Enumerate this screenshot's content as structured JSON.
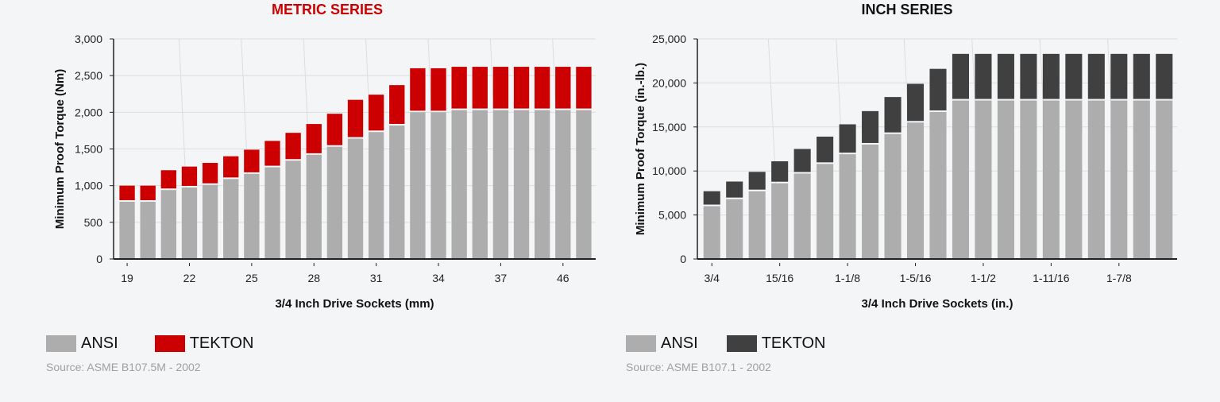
{
  "chart_data": [
    {
      "type": "bar",
      "stacked": true,
      "title": "METRIC SERIES",
      "title_color": "#cc0000",
      "xlabel": "3/4 Inch Drive Sockets (mm)",
      "ylabel": "Minimum Proof Torque (Nm)",
      "ylim": [
        0,
        3000
      ],
      "yticks": [
        "0",
        "500",
        "1,000",
        "1,500",
        "2,000",
        "2,500",
        "3,000"
      ],
      "ytick_values": [
        0,
        500,
        1000,
        1500,
        2000,
        2500,
        3000
      ],
      "grid": true,
      "categories": [
        "19",
        "",
        "",
        "22",
        "",
        "",
        "25",
        "",
        "",
        "28",
        "",
        "",
        "31",
        "",
        "",
        "34",
        "",
        "",
        "37",
        "",
        "",
        "46",
        ""
      ],
      "series": [
        {
          "name": "ANSI",
          "color": "#adadad",
          "values": [
            780,
            780,
            940,
            975,
            1010,
            1090,
            1160,
            1250,
            1340,
            1420,
            1530,
            1640,
            1730,
            1820,
            2000,
            2000,
            2030,
            2030,
            2030,
            2030,
            2030,
            2030,
            2030
          ]
        },
        {
          "name": "TEKTON",
          "color": "#cc0000",
          "totals": [
            1000,
            1000,
            1210,
            1260,
            1310,
            1400,
            1490,
            1610,
            1720,
            1840,
            1980,
            2170,
            2240,
            2370,
            2600,
            2600,
            2620,
            2620,
            2620,
            2620,
            2620,
            2620,
            2620
          ]
        }
      ],
      "legend": "bottom-left",
      "source": "Source: ASME B107.5M - 2002"
    },
    {
      "type": "bar",
      "stacked": true,
      "title": "INCH SERIES",
      "title_color": "#111111",
      "xlabel": "3/4 Inch Drive Sockets (in.)",
      "ylabel": "Minimum Proof Torque (in.-lb.)",
      "ylim": [
        0,
        25000
      ],
      "yticks": [
        "0",
        "5,000",
        "10,000",
        "15,000",
        "20,000",
        "25,000"
      ],
      "ytick_values": [
        0,
        5000,
        10000,
        15000,
        20000,
        25000
      ],
      "grid": true,
      "categories": [
        "3/4",
        "",
        "",
        "15/16",
        "",
        "",
        "1-1/8",
        "",
        "",
        "1-5/16",
        "",
        "",
        "1-1/2",
        "",
        "",
        "1-11/16",
        "",
        "",
        "1-7/8",
        "",
        ""
      ],
      "series": [
        {
          "name": "ANSI",
          "color": "#adadad",
          "values": [
            6000,
            6800,
            7700,
            8600,
            9700,
            10800,
            11900,
            13000,
            14200,
            15500,
            16700,
            18000,
            18000,
            18000,
            18000,
            18000,
            18000,
            18000,
            18000,
            18000,
            18000
          ]
        },
        {
          "name": "TEKTON",
          "color": "#404040",
          "totals": [
            7700,
            8800,
            9900,
            11100,
            12500,
            13900,
            15300,
            16800,
            18400,
            19900,
            21600,
            23300,
            23300,
            23300,
            23300,
            23300,
            23300,
            23300,
            23300,
            23300,
            23300
          ]
        }
      ],
      "legend": "bottom-left",
      "source": "Source: ASME B107.1 - 2002"
    }
  ]
}
